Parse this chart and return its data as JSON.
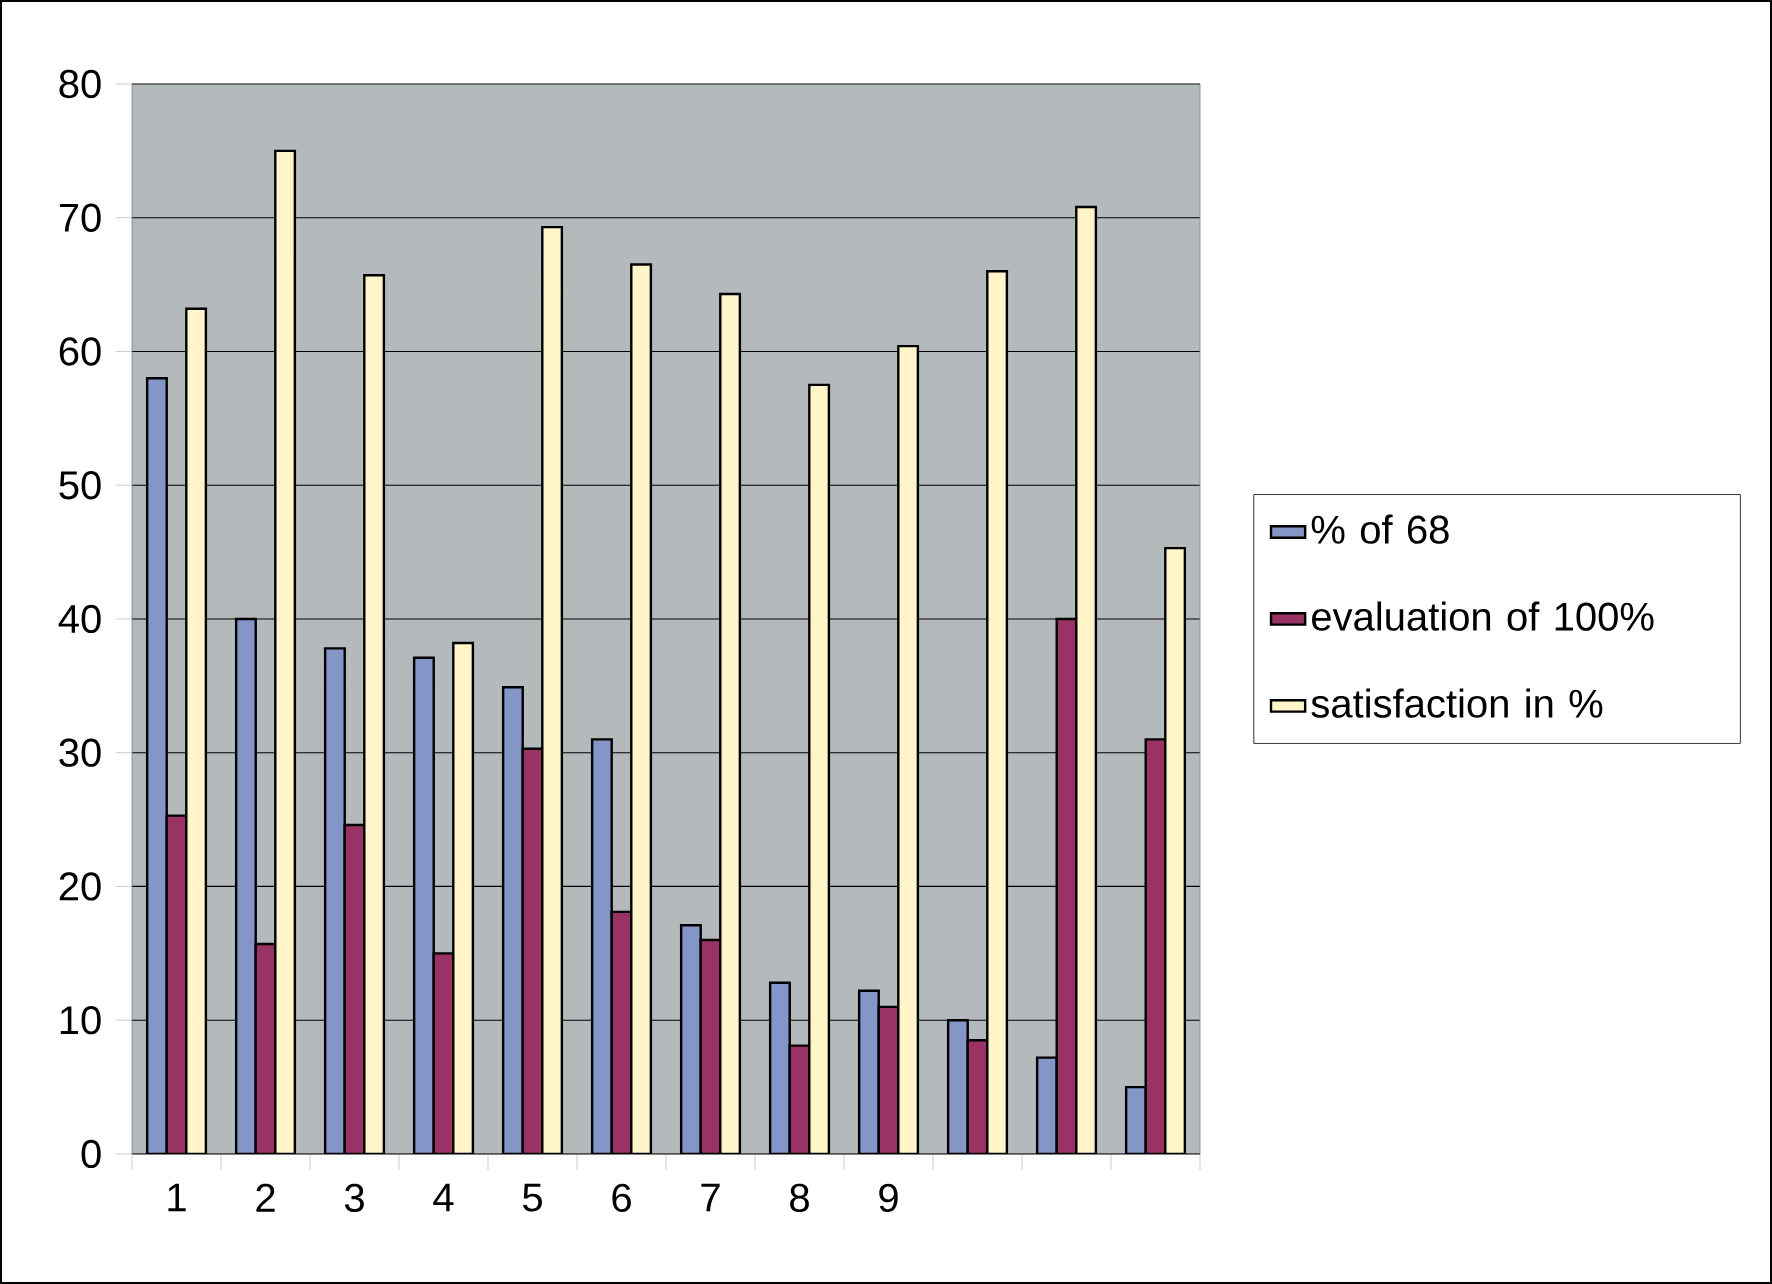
{
  "chart_data": {
    "type": "bar",
    "categories": [
      "1",
      "2",
      "3",
      "4",
      "5",
      "6",
      "7",
      "8",
      "9",
      null,
      null,
      null
    ],
    "series": [
      {
        "name": "% of 68",
        "color": "#8496c8",
        "values": [
          58,
          40,
          37.8,
          37.1,
          34.9,
          31,
          17.1,
          12.8,
          12.2,
          10,
          7.2,
          5
        ]
      },
      {
        "name": "evaluation of 100%",
        "color": "#993366",
        "values": [
          25.3,
          15.7,
          24.6,
          15,
          30.3,
          18.1,
          16,
          8.1,
          11,
          8.5,
          40,
          31
        ]
      },
      {
        "name": "satisfaction in %",
        "color": "#fff5c8",
        "values": [
          63.2,
          75,
          65.7,
          38.2,
          69.3,
          66.5,
          64.3,
          57.5,
          60.4,
          66,
          70.8,
          45.3
        ]
      }
    ],
    "ylim": [
      0,
      80
    ],
    "yticks": [
      0,
      10,
      20,
      30,
      40,
      50,
      60,
      70,
      80
    ],
    "grid": "y",
    "legend": "right"
  }
}
